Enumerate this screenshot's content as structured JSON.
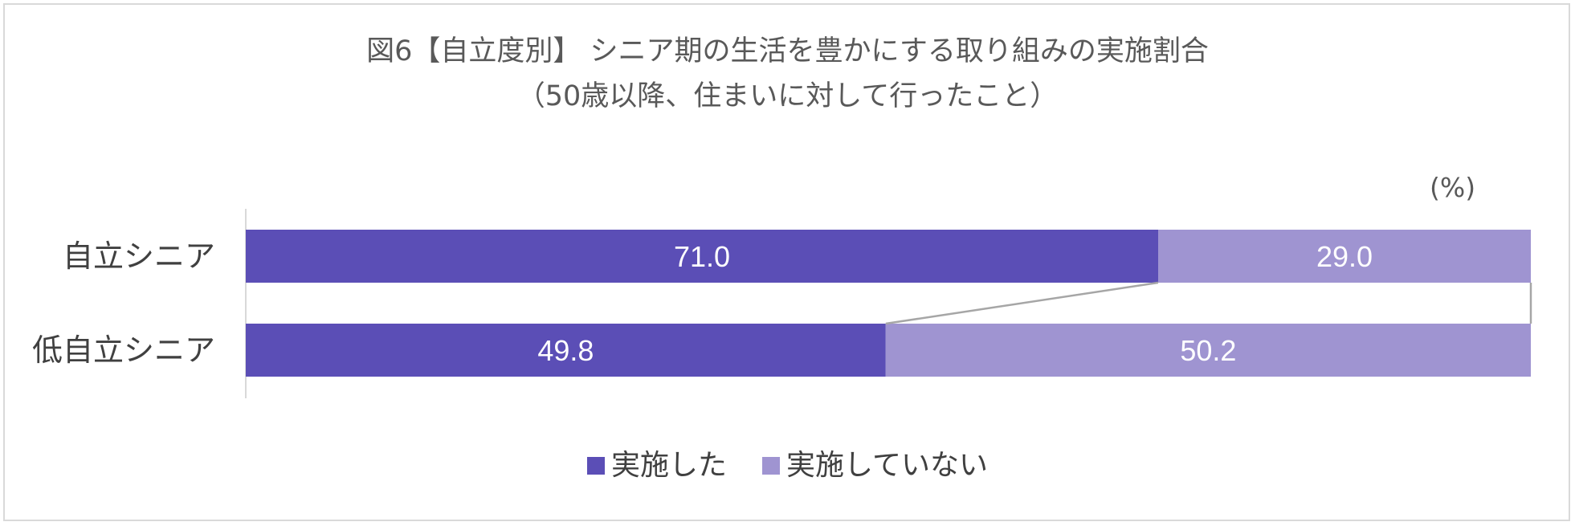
{
  "chart_data": {
    "type": "bar",
    "orientation": "horizontal",
    "stacked": true,
    "title_lines": [
      "図6【自立度別】 シニア期の生活を豊かにする取り組みの実施割合",
      "（50歳以降、住まいに対して行ったこと）"
    ],
    "unit_label": "(%)",
    "categories": [
      "自立シニア",
      "低自立シニア"
    ],
    "series": [
      {
        "name": "実施した",
        "values": [
          71.0,
          49.8
        ],
        "color": "#5b4eb6"
      },
      {
        "name": "実施していない",
        "values": [
          29.0,
          50.2
        ],
        "color": "#9f94d1"
      }
    ],
    "data_labels": [
      [
        "71.0",
        "29.0"
      ],
      [
        "49.8",
        "50.2"
      ]
    ],
    "xlim": [
      0,
      100
    ],
    "legend_position": "bottom",
    "series_lines": true
  }
}
